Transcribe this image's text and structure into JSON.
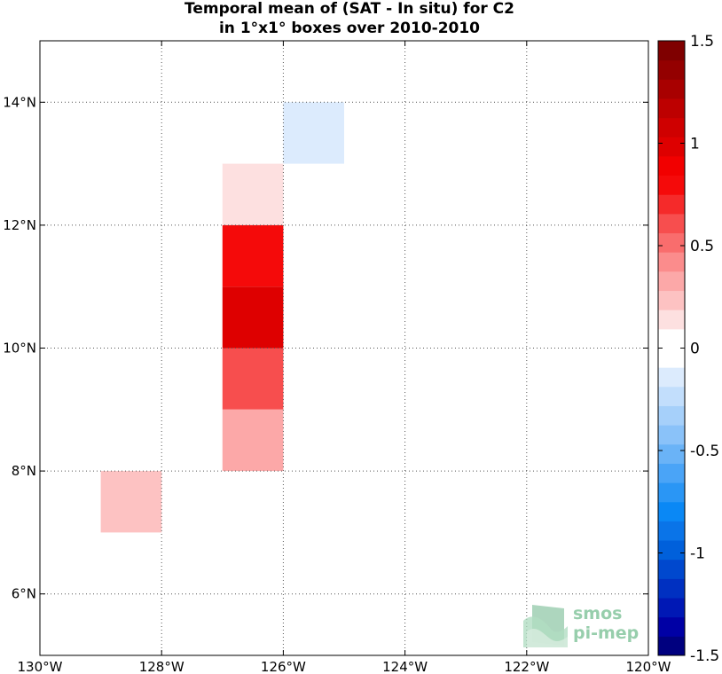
{
  "chart_data": {
    "type": "heatmap",
    "title": [
      "Temporal mean of (SAT - In situ) for C2",
      "in 1°x1° boxes over 2010-2010"
    ],
    "xlim": [
      -130,
      -120
    ],
    "ylim": [
      5,
      15
    ],
    "x_ticks": [
      -130,
      -128,
      -126,
      -124,
      -122,
      -120
    ],
    "x_tick_labels": [
      "130°W",
      "128°W",
      "126°W",
      "124°W",
      "122°W",
      "120°W"
    ],
    "y_ticks": [
      6,
      8,
      10,
      12,
      14
    ],
    "y_tick_labels": [
      "6°N",
      "8°N",
      "10°N",
      "12°N",
      "14°N"
    ],
    "grid": true,
    "cells": [
      {
        "lon": [
          -127,
          -126
        ],
        "lat": [
          12,
          13
        ],
        "value": 0.1
      },
      {
        "lon": [
          -127,
          -126
        ],
        "lat": [
          11,
          12
        ],
        "value": 0.8
      },
      {
        "lon": [
          -127,
          -126
        ],
        "lat": [
          10,
          11
        ],
        "value": 0.95
      },
      {
        "lon": [
          -127,
          -126
        ],
        "lat": [
          9,
          10
        ],
        "value": 0.6
      },
      {
        "lon": [
          -127,
          -126
        ],
        "lat": [
          8,
          9
        ],
        "value": 0.35
      },
      {
        "lon": [
          -125,
          -126
        ],
        "lat": [
          13,
          14
        ],
        "value": -0.1
      },
      {
        "lon": [
          -129,
          -128
        ],
        "lat": [
          7,
          8
        ],
        "value": 0.25
      }
    ],
    "colorbar": {
      "range": [
        -1.5,
        1.5
      ],
      "levels": 32,
      "ticks": [
        1.5,
        1,
        0.5,
        0,
        -0.5,
        -1,
        -1.5
      ],
      "tick_labels": [
        "1.5",
        "1",
        "0.5",
        "0",
        "-0.5",
        "-1",
        "-1.5"
      ],
      "colors": [
        "#00007f",
        "#0000a5",
        "#0018b5",
        "#0030c1",
        "#0048ce",
        "#0060db",
        "#0a74e8",
        "#0a88f5",
        "#2a96f5",
        "#4aa4f7",
        "#6ab3f7",
        "#8ac2f9",
        "#a6d0fa",
        "#c2defc",
        "#dcebfd",
        "#ffffff",
        "#ffffff",
        "#fde0e0",
        "#fdc2c2",
        "#fca8a8",
        "#fb8c8c",
        "#f96d6d",
        "#f74e4e",
        "#f52a2a",
        "#f50a0a",
        "#f20000",
        "#de0000",
        "#cf0000",
        "#bd0000",
        "#a80000",
        "#940000",
        "#7f0000"
      ]
    }
  },
  "logo": {
    "line1": "smos",
    "line2": "pi-mep",
    "color": "#8cc9a4"
  }
}
